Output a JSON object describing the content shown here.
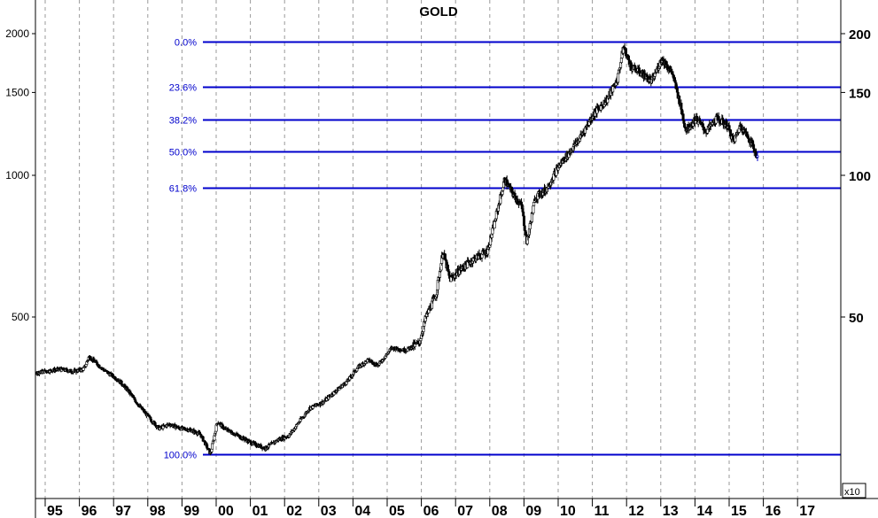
{
  "chart_data": {
    "type": "candlestick",
    "title": "GOLD",
    "y_scale": "log",
    "ylim": [
      230,
      2200
    ],
    "left_axis_ticks": [
      {
        "value": 500,
        "label": "500"
      },
      {
        "value": 1000,
        "label": "1000"
      },
      {
        "value": 1500,
        "label": "1500"
      },
      {
        "value": 2000,
        "label": "2000"
      }
    ],
    "right_axis_ticks": [
      {
        "value": 500,
        "label": "50"
      },
      {
        "value": 1000,
        "label": "100"
      },
      {
        "value": 1500,
        "label": "150"
      },
      {
        "value": 2000,
        "label": "200"
      }
    ],
    "right_axis_multiplier": "x10",
    "x_tick_labels": [
      "95",
      "96",
      "97",
      "98",
      "99",
      "00",
      "01",
      "02",
      "03",
      "04",
      "05",
      "06",
      "07",
      "08",
      "09",
      "10",
      "11",
      "12",
      "13",
      "14",
      "15",
      "16",
      "17"
    ],
    "fibonacci_levels": [
      {
        "label": "0.0%",
        "value": 1920
      },
      {
        "label": "23.6%",
        "value": 1545
      },
      {
        "label": "38.2%",
        "value": 1315
      },
      {
        "label": "50.0%",
        "value": 1126
      },
      {
        "label": "61.8%",
        "value": 942
      },
      {
        "label": "100.0%",
        "value": 255
      }
    ],
    "grid": {
      "vertical_dashed": true,
      "horizontal": false
    },
    "price_path": [
      {
        "year": 1994.0,
        "price": 385
      },
      {
        "year": 1994.3,
        "price": 378
      },
      {
        "year": 1994.7,
        "price": 383
      },
      {
        "year": 1995.2,
        "price": 387
      },
      {
        "year": 1995.6,
        "price": 383
      },
      {
        "year": 1995.9,
        "price": 388
      },
      {
        "year": 1996.05,
        "price": 412
      },
      {
        "year": 1996.5,
        "price": 385
      },
      {
        "year": 1996.9,
        "price": 368
      },
      {
        "year": 1997.2,
        "price": 348
      },
      {
        "year": 1997.5,
        "price": 325
      },
      {
        "year": 1997.9,
        "price": 300
      },
      {
        "year": 1998.1,
        "price": 290
      },
      {
        "year": 1998.4,
        "price": 296
      },
      {
        "year": 1998.7,
        "price": 290
      },
      {
        "year": 1999.0,
        "price": 288
      },
      {
        "year": 1999.3,
        "price": 282
      },
      {
        "year": 1999.6,
        "price": 256
      },
      {
        "year": 1999.8,
        "price": 300
      },
      {
        "year": 2000.0,
        "price": 290
      },
      {
        "year": 2000.4,
        "price": 280
      },
      {
        "year": 2000.8,
        "price": 270
      },
      {
        "year": 2001.2,
        "price": 263
      },
      {
        "year": 2001.6,
        "price": 275
      },
      {
        "year": 2001.9,
        "price": 280
      },
      {
        "year": 2002.2,
        "price": 300
      },
      {
        "year": 2002.5,
        "price": 320
      },
      {
        "year": 2002.9,
        "price": 330
      },
      {
        "year": 2003.2,
        "price": 345
      },
      {
        "year": 2003.6,
        "price": 365
      },
      {
        "year": 2003.9,
        "price": 390
      },
      {
        "year": 2004.2,
        "price": 405
      },
      {
        "year": 2004.5,
        "price": 395
      },
      {
        "year": 2004.9,
        "price": 430
      },
      {
        "year": 2005.3,
        "price": 425
      },
      {
        "year": 2005.7,
        "price": 440
      },
      {
        "year": 2005.9,
        "price": 500
      },
      {
        "year": 2006.2,
        "price": 560
      },
      {
        "year": 2006.4,
        "price": 690
      },
      {
        "year": 2006.6,
        "price": 600
      },
      {
        "year": 2006.9,
        "price": 630
      },
      {
        "year": 2007.3,
        "price": 665
      },
      {
        "year": 2007.7,
        "price": 690
      },
      {
        "year": 2007.9,
        "price": 790
      },
      {
        "year": 2008.2,
        "price": 980
      },
      {
        "year": 2008.5,
        "price": 900
      },
      {
        "year": 2008.7,
        "price": 860
      },
      {
        "year": 2008.85,
        "price": 720
      },
      {
        "year": 2009.1,
        "price": 900
      },
      {
        "year": 2009.4,
        "price": 930
      },
      {
        "year": 2009.8,
        "price": 1050
      },
      {
        "year": 2010.1,
        "price": 1120
      },
      {
        "year": 2010.4,
        "price": 1200
      },
      {
        "year": 2010.8,
        "price": 1350
      },
      {
        "year": 2011.2,
        "price": 1450
      },
      {
        "year": 2011.5,
        "price": 1600
      },
      {
        "year": 2011.68,
        "price": 1880
      },
      {
        "year": 2011.9,
        "price": 1700
      },
      {
        "year": 2012.2,
        "price": 1650
      },
      {
        "year": 2012.5,
        "price": 1580
      },
      {
        "year": 2012.8,
        "price": 1770
      },
      {
        "year": 2013.1,
        "price": 1650
      },
      {
        "year": 2013.3,
        "price": 1450
      },
      {
        "year": 2013.5,
        "price": 1250
      },
      {
        "year": 2013.8,
        "price": 1320
      },
      {
        "year": 2014.1,
        "price": 1240
      },
      {
        "year": 2014.4,
        "price": 1320
      },
      {
        "year": 2014.7,
        "price": 1280
      },
      {
        "year": 2014.9,
        "price": 1180
      },
      {
        "year": 2015.1,
        "price": 1280
      },
      {
        "year": 2015.4,
        "price": 1180
      },
      {
        "year": 2015.6,
        "price": 1090
      }
    ]
  }
}
